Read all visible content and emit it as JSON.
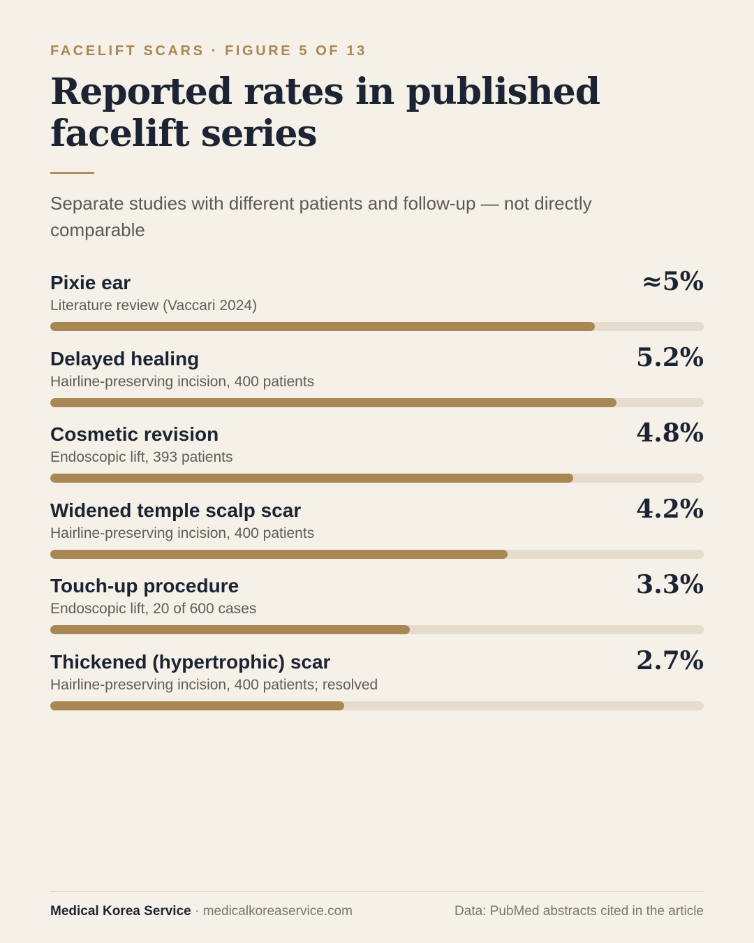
{
  "kicker": "FACELIFT SCARS · FIGURE 5 OF 13",
  "title": "Reported rates in published facelift series",
  "subtitle": "Separate studies with different patients and follow-up — not directly comparable",
  "chart_data": {
    "type": "bar",
    "orientation": "horizontal",
    "title": "Reported rates in published facelift series",
    "subtitle": "Separate studies with different patients and follow-up — not directly comparable",
    "unit": "%",
    "xlim": [
      0,
      6
    ],
    "categories": [
      "Pixie ear",
      "Delayed healing",
      "Cosmetic revision",
      "Widened temple scalp scar",
      "Touch-up procedure",
      "Thickened (hypertrophic) scar"
    ],
    "notes": [
      "Literature review (Vaccari 2024)",
      "Hairline-preserving incision, 400 patients",
      "Endoscopic lift, 393 patients",
      "Hairline-preserving incision, 400 patients",
      "Endoscopic lift, 20 of 600 cases",
      "Hairline-preserving incision, 400 patients; resolved"
    ],
    "values": [
      5,
      5.2,
      4.8,
      4.2,
      3.3,
      2.7
    ],
    "value_labels": [
      "≈5%",
      "5.2%",
      "4.8%",
      "4.2%",
      "3.3%",
      "2.7%"
    ],
    "colors": {
      "bar": "#a98752",
      "track": "#e5dccd"
    }
  },
  "footer": {
    "brand": "Medical Korea Service",
    "separator": " · ",
    "site": "medicalkoreaservice.com",
    "source": "Data: PubMed abstracts cited in the article"
  }
}
